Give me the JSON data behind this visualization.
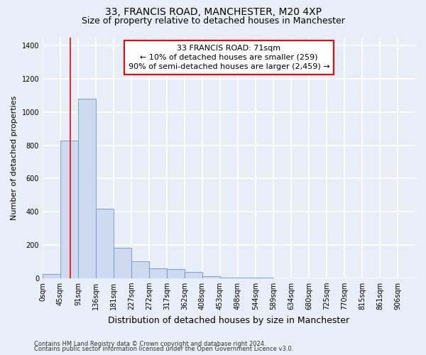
{
  "title": "33, FRANCIS ROAD, MANCHESTER, M20 4XP",
  "subtitle": "Size of property relative to detached houses in Manchester",
  "xlabel": "Distribution of detached houses by size in Manchester",
  "ylabel": "Number of detached properties",
  "bar_labels": [
    "0sqm",
    "45sqm",
    "91sqm",
    "136sqm",
    "181sqm",
    "227sqm",
    "272sqm",
    "317sqm",
    "362sqm",
    "408sqm",
    "453sqm",
    "498sqm",
    "544sqm",
    "589sqm",
    "634sqm",
    "680sqm",
    "725sqm",
    "770sqm",
    "815sqm",
    "861sqm",
    "906sqm"
  ],
  "bar_values": [
    25,
    830,
    1080,
    420,
    185,
    103,
    60,
    55,
    38,
    12,
    5,
    5,
    3,
    0,
    0,
    0,
    0,
    0,
    0,
    0,
    0
  ],
  "bar_color": "#ccd9ee",
  "bar_edge_color": "#6a96cc",
  "ylim": [
    0,
    1450
  ],
  "yticks": [
    0,
    200,
    400,
    600,
    800,
    1000,
    1200,
    1400
  ],
  "annotation_text": "33 FRANCIS ROAD: 71sqm\n← 10% of detached houses are smaller (259)\n90% of semi-detached houses are larger (2,459) →",
  "footer_line1": "Contains HM Land Registry data © Crown copyright and database right 2024.",
  "footer_line2": "Contains public sector information licensed under the Open Government Licence v3.0.",
  "bg_color": "#e8eef8",
  "plot_bg_color": "#e8eef8",
  "grid_color": "#ffffff",
  "title_fontsize": 10,
  "subtitle_fontsize": 9,
  "label_fontsize": 8,
  "tick_fontsize": 7,
  "ann_fontsize": 8
}
